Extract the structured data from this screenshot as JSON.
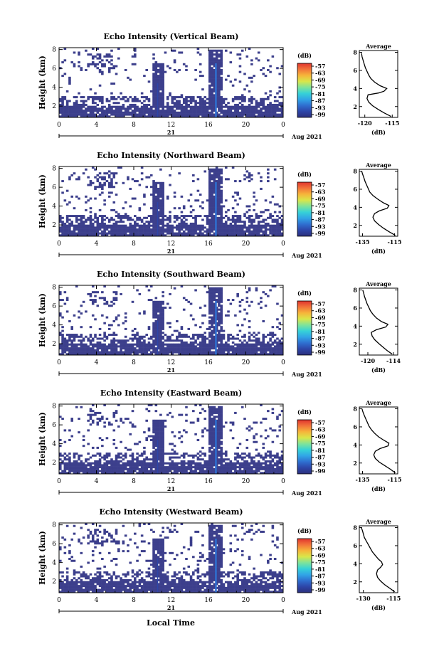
{
  "colors": {
    "background": "#ffffff",
    "echo_fill": "#3c3f8c",
    "colorbar": [
      "#2c2f7c",
      "#2d45a8",
      "#2f6fd0",
      "#31a5e6",
      "#36d2d7",
      "#7fe39a",
      "#d9e64a",
      "#f6b53a",
      "#f2743a",
      "#e0342e"
    ]
  },
  "chart_data": [
    {
      "type": "heatmap",
      "title": "Echo Intensity (Vertical Beam)",
      "ylabel": "Height (km)",
      "ylim": [
        0.8,
        8.2
      ],
      "yticks": [
        "2",
        "4",
        "6",
        "8"
      ],
      "xticks": [
        "0",
        "4",
        "8",
        "12",
        "16",
        "20",
        "0"
      ],
      "xlim": [
        0,
        24
      ],
      "date_day": "21",
      "date_month": "Aug 2021",
      "cbar_unit": "(dB)",
      "cbar_ticks": [
        "-57",
        "-63",
        "-69",
        "-75",
        "-81",
        "-87",
        "-93",
        "-99"
      ],
      "avg_title": "Average",
      "avg_xticks": [
        "-120",
        "-115"
      ],
      "avg_xlim": [
        -121,
        -114
      ],
      "avg_yticks": [
        "2",
        "4",
        "6",
        "8"
      ],
      "avg_xlabel": "(dB)",
      "average": {
        "h": [
          0.9,
          1.3,
          1.7,
          2.1,
          2.5,
          2.9,
          3.3,
          3.5,
          3.7,
          4.0,
          4.3,
          4.7,
          5.1,
          5.5,
          5.9,
          6.3,
          6.7,
          7.1,
          7.5,
          7.9
        ],
        "db": [
          -115.2,
          -116.5,
          -117.6,
          -118.6,
          -119.3,
          -119.6,
          -119.4,
          -117.5,
          -116.5,
          -116.0,
          -117.2,
          -118.2,
          -118.9,
          -119.3,
          -119.6,
          -119.9,
          -120.1,
          -120.3,
          -120.5,
          -120.6
        ]
      }
    },
    {
      "type": "heatmap",
      "title": "Echo Intensity (Northward Beam)",
      "ylabel": "Height (km)",
      "ylim": [
        0.8,
        8.2
      ],
      "yticks": [
        "2",
        "4",
        "6",
        "8"
      ],
      "xticks": [
        "0",
        "4",
        "8",
        "12",
        "16",
        "20",
        "0"
      ],
      "xlim": [
        0,
        24
      ],
      "date_day": "21",
      "date_month": "Aug 2021",
      "cbar_unit": "(dB)",
      "cbar_ticks": [
        "-57",
        "-63",
        "-69",
        "-75",
        "-81",
        "-87",
        "-93",
        "-99"
      ],
      "avg_title": "Average",
      "avg_xticks": [
        "-135",
        "-115"
      ],
      "avg_xlim": [
        -137,
        -113
      ],
      "avg_yticks": [
        "2",
        "4",
        "6",
        "8"
      ],
      "avg_xlabel": "(dB)",
      "average": {
        "h": [
          0.9,
          1.3,
          1.7,
          2.1,
          2.5,
          2.9,
          3.3,
          3.6,
          3.9,
          4.2,
          4.5,
          4.9,
          5.3,
          5.7,
          6.1,
          6.5,
          6.9,
          7.3,
          7.7,
          8.0
        ],
        "db": [
          -114.5,
          -118.5,
          -122.0,
          -125.0,
          -127.5,
          -128.5,
          -127.5,
          -124.5,
          -119.5,
          -118.5,
          -122.0,
          -125.5,
          -128.5,
          -130.5,
          -131.5,
          -132.5,
          -133.5,
          -134.2,
          -135.0,
          -135.5
        ]
      }
    },
    {
      "type": "heatmap",
      "title": "Echo Intensity (Southward Beam)",
      "ylabel": "Height (km)",
      "ylim": [
        0.8,
        8.2
      ],
      "yticks": [
        "2",
        "4",
        "6",
        "8"
      ],
      "xticks": [
        "0",
        "4",
        "8",
        "12",
        "16",
        "20",
        "0"
      ],
      "xlim": [
        0,
        24
      ],
      "date_day": "21",
      "date_month": "Aug 2021",
      "cbar_unit": "(dB)",
      "cbar_ticks": [
        "-57",
        "-63",
        "-69",
        "-75",
        "-81",
        "-87",
        "-93",
        "-99"
      ],
      "avg_title": "Average",
      "avg_xticks": [
        "-120",
        "-114"
      ],
      "avg_xlim": [
        -122,
        -113
      ],
      "avg_yticks": [
        "2",
        "4",
        "6",
        "8"
      ],
      "avg_xlabel": "(dB)",
      "average": {
        "h": [
          0.9,
          1.3,
          1.7,
          2.1,
          2.5,
          2.9,
          3.3,
          3.6,
          3.9,
          4.2,
          4.5,
          4.9,
          5.3,
          5.7,
          6.1,
          6.5,
          6.9,
          7.3,
          7.7,
          8.0
        ],
        "db": [
          -114.3,
          -115.5,
          -116.5,
          -117.5,
          -118.4,
          -119.0,
          -119.2,
          -118.0,
          -115.8,
          -115.3,
          -116.8,
          -118.0,
          -118.8,
          -119.4,
          -119.8,
          -120.2,
          -120.5,
          -120.8,
          -121.0,
          -121.2
        ]
      }
    },
    {
      "type": "heatmap",
      "title": "Echo Intensity (Eastward Beam)",
      "ylabel": "Height (km)",
      "ylim": [
        0.8,
        8.2
      ],
      "yticks": [
        "2",
        "4",
        "6",
        "8"
      ],
      "xticks": [
        "0",
        "4",
        "8",
        "12",
        "16",
        "20",
        "0"
      ],
      "xlim": [
        0,
        24
      ],
      "date_day": "21",
      "date_month": "Aug 2021",
      "cbar_unit": "(dB)",
      "cbar_ticks": [
        "-57",
        "-63",
        "-69",
        "-75",
        "-81",
        "-87",
        "-93",
        "-99"
      ],
      "avg_title": "Average",
      "avg_xticks": [
        "-135",
        "-115"
      ],
      "avg_xlim": [
        -137,
        -113
      ],
      "avg_yticks": [
        "2",
        "4",
        "6",
        "8"
      ],
      "avg_xlabel": "(dB)",
      "average": {
        "h": [
          0.9,
          1.3,
          1.7,
          2.1,
          2.5,
          2.9,
          3.3,
          3.6,
          3.9,
          4.2,
          4.5,
          4.9,
          5.3,
          5.7,
          6.1,
          6.5,
          6.9,
          7.3,
          7.7,
          8.0
        ],
        "db": [
          -114.5,
          -117.5,
          -121.0,
          -124.5,
          -127.0,
          -128.0,
          -127.0,
          -124.0,
          -119.0,
          -118.5,
          -121.5,
          -125.0,
          -127.5,
          -129.5,
          -131.0,
          -132.0,
          -133.0,
          -134.0,
          -134.8,
          -135.3
        ]
      }
    },
    {
      "type": "heatmap",
      "title": "Echo Intensity (Westward Beam)",
      "ylabel": "Height (km)",
      "ylim": [
        0.8,
        8.2
      ],
      "yticks": [
        "2",
        "4",
        "6",
        "8"
      ],
      "xticks": [
        "0",
        "4",
        "8",
        "12",
        "16",
        "20",
        "0"
      ],
      "xlim": [
        0,
        24
      ],
      "date_day": "21",
      "date_month": "Aug 2021",
      "cbar_unit": "(dB)",
      "cbar_ticks": [
        "-57",
        "-63",
        "-69",
        "-75",
        "-81",
        "-87",
        "-93",
        "-99"
      ],
      "avg_title": "Average",
      "avg_xticks": [
        "-130",
        "-115"
      ],
      "avg_xlim": [
        -132,
        -113
      ],
      "avg_yticks": [
        "2",
        "4",
        "6",
        "8"
      ],
      "avg_xlabel": "(dB)",
      "average": {
        "h": [
          0.9,
          1.3,
          1.7,
          2.1,
          2.5,
          2.9,
          3.3,
          3.6,
          3.9,
          4.2,
          4.5,
          4.9,
          5.3,
          5.7,
          6.1,
          6.5,
          6.9,
          7.3,
          7.7,
          8.0
        ],
        "db": [
          -114.5,
          -117.0,
          -119.5,
          -121.5,
          -123.0,
          -123.5,
          -123.0,
          -121.5,
          -120.5,
          -121.0,
          -122.5,
          -124.0,
          -125.5,
          -126.5,
          -127.5,
          -128.5,
          -129.5,
          -130.0,
          -130.5,
          -131.0
        ]
      }
    }
  ],
  "shared_xlabel": "Local Time"
}
